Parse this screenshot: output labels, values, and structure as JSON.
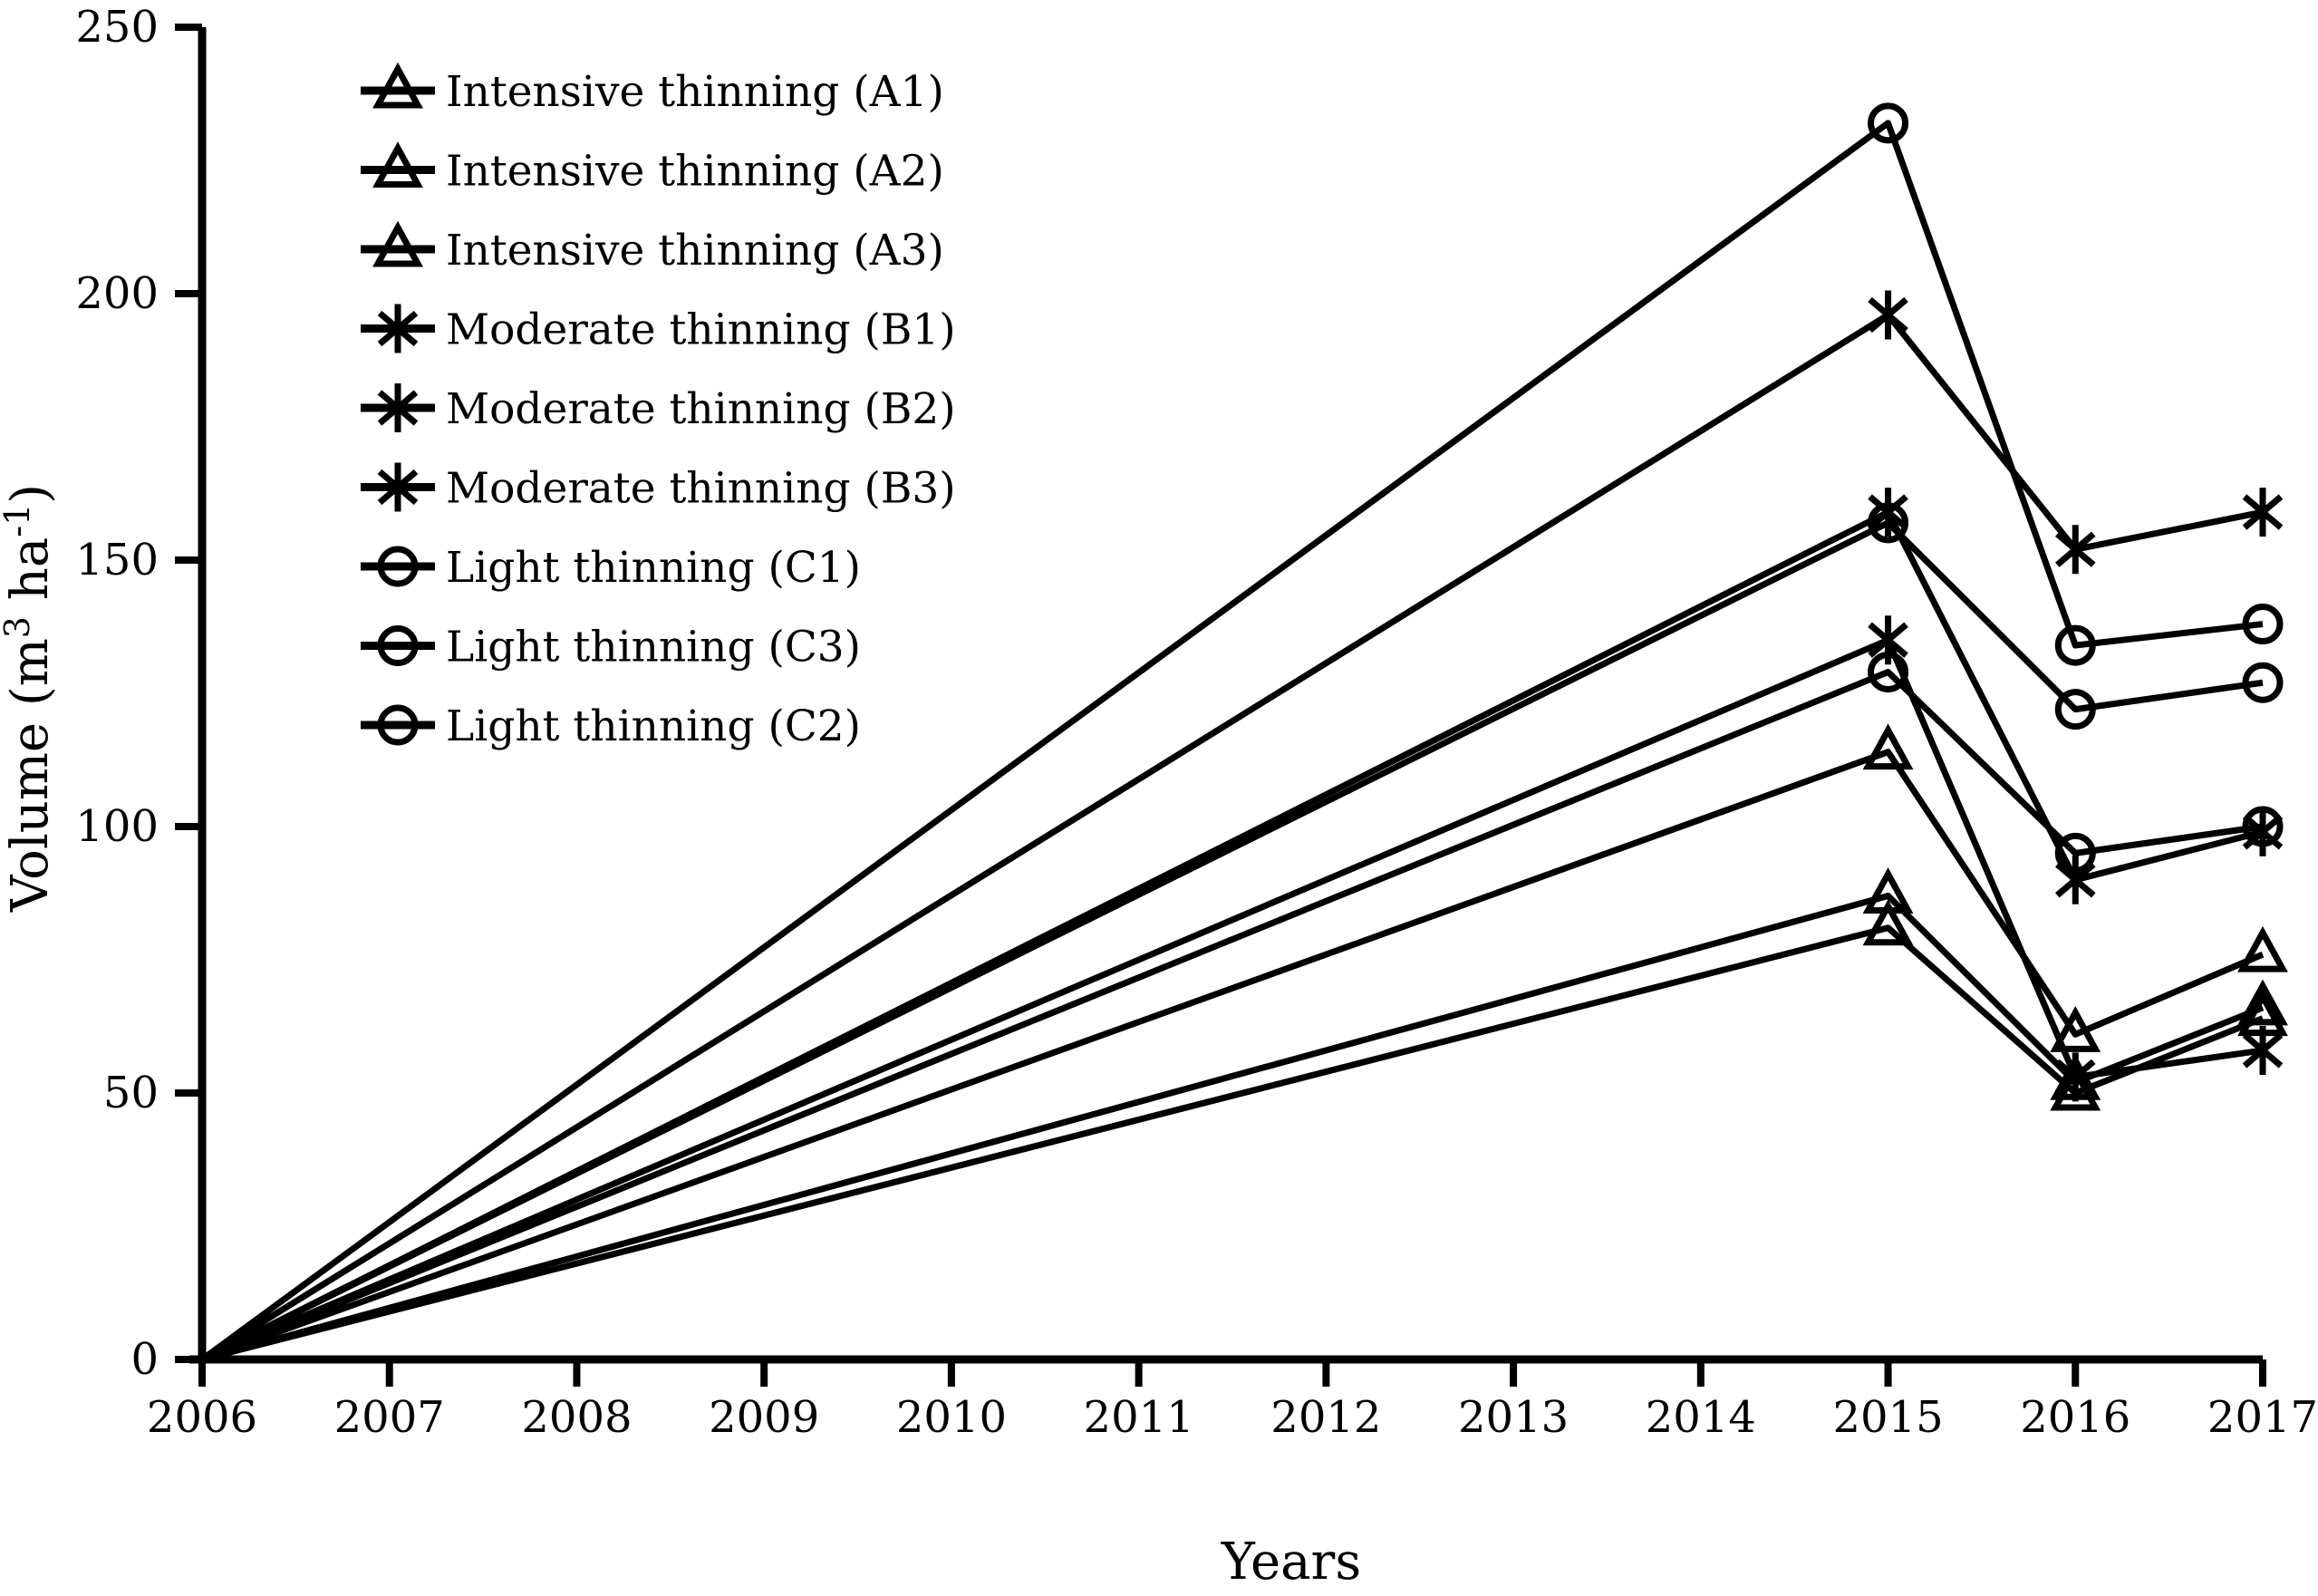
{
  "figure": {
    "background": "#ffffff",
    "line_color": "#000000",
    "ylabel_parts": [
      {
        "text": "Volume (m",
        "sup": false
      },
      {
        "text": "3",
        "sup": true
      },
      {
        "text": " ha",
        "sup": false
      },
      {
        "text": "-1",
        "sup": true
      },
      {
        "text": ")",
        "sup": false
      }
    ]
  },
  "chart_data": {
    "type": "line",
    "title": "",
    "xlabel": "Years",
    "ylabel": "Volume (m³ ha⁻¹)",
    "x": [
      2006,
      2015,
      2016,
      2017
    ],
    "xaxis_ticks": [
      2006,
      2007,
      2008,
      2009,
      2010,
      2011,
      2012,
      2013,
      2014,
      2015,
      2016,
      2017
    ],
    "ylim": [
      0,
      250
    ],
    "ytick_step": 50,
    "grid": false,
    "legend_position": "upper-left",
    "marker_fill": "open",
    "series": [
      {
        "name": "Intensive thinning (A1)",
        "marker": "triangle",
        "values": [
          0,
          114,
          61,
          76
        ]
      },
      {
        "name": "Intensive thinning (A2)",
        "marker": "triangle",
        "values": [
          0,
          87,
          52,
          66
        ]
      },
      {
        "name": "Intensive thinning (A3)",
        "marker": "triangle",
        "values": [
          0,
          81,
          50,
          64
        ]
      },
      {
        "name": "Moderate thinning (B1)",
        "marker": "asterisk",
        "values": [
          0,
          196,
          152,
          159
        ]
      },
      {
        "name": "Moderate thinning (B2)",
        "marker": "asterisk",
        "values": [
          0,
          159,
          90,
          99
        ]
      },
      {
        "name": "Moderate thinning (B3)",
        "marker": "asterisk",
        "values": [
          0,
          135,
          53,
          58
        ]
      },
      {
        "name": "Light thinning (C1)",
        "marker": "circle",
        "values": [
          0,
          232,
          134,
          138
        ]
      },
      {
        "name": "Light thinning (C3)",
        "marker": "circle",
        "values": [
          0,
          157,
          122,
          127
        ]
      },
      {
        "name": "Light thinning (C2)",
        "marker": "circle",
        "values": [
          0,
          129,
          95,
          100
        ]
      }
    ]
  }
}
